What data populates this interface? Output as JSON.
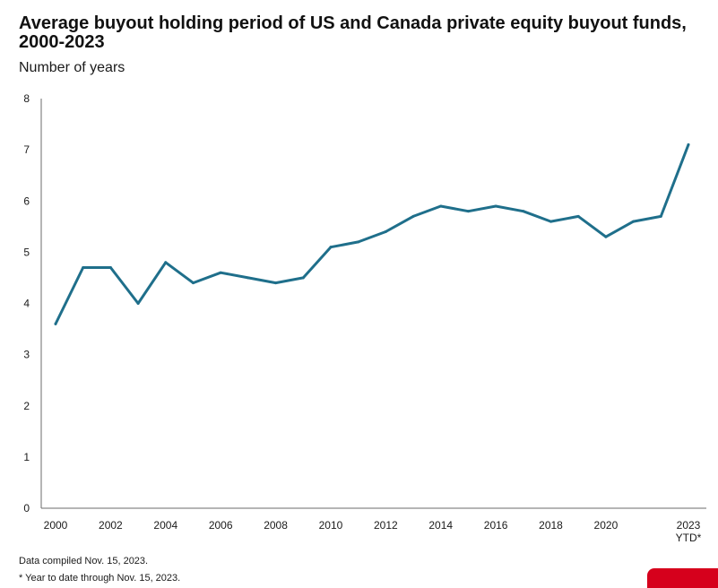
{
  "header": {
    "title": "Average buyout holding period of US and Canada private equity buyout funds, 2000-2023",
    "subtitle": "Number of years"
  },
  "footnotes": {
    "compiled": "Data compiled Nov. 15, 2023.",
    "ytd": "* Year to date through Nov. 15, 2023."
  },
  "colors": {
    "line": "#1f6f8b",
    "axis": "#6b6b6b",
    "text": "#1a1a1a",
    "brand_mark": "#d6001c"
  },
  "chart_data": {
    "type": "line",
    "title": "Average buyout holding period of US and Canada private equity buyout funds, 2000-2023",
    "ylabel": "Number of years",
    "xlabel": "",
    "ylim": [
      0,
      8
    ],
    "yticks": [
      0,
      1,
      2,
      3,
      4,
      5,
      6,
      7,
      8
    ],
    "x": [
      2000,
      2001,
      2002,
      2003,
      2004,
      2005,
      2006,
      2007,
      2008,
      2009,
      2010,
      2011,
      2012,
      2013,
      2014,
      2015,
      2016,
      2017,
      2018,
      2019,
      2020,
      2021,
      2022,
      2023
    ],
    "xticks": [
      {
        "x": 2000,
        "label": "2000"
      },
      {
        "x": 2002,
        "label": "2002"
      },
      {
        "x": 2004,
        "label": "2004"
      },
      {
        "x": 2006,
        "label": "2006"
      },
      {
        "x": 2008,
        "label": "2008"
      },
      {
        "x": 2010,
        "label": "2010"
      },
      {
        "x": 2012,
        "label": "2012"
      },
      {
        "x": 2014,
        "label": "2014"
      },
      {
        "x": 2016,
        "label": "2016"
      },
      {
        "x": 2018,
        "label": "2018"
      },
      {
        "x": 2020,
        "label": "2020"
      },
      {
        "x": 2023,
        "label": "2023",
        "sublabel": "YTD*"
      }
    ],
    "series": [
      {
        "values": [
          3.6,
          4.7,
          4.7,
          4.0,
          4.8,
          4.4,
          4.6,
          4.5,
          4.4,
          4.5,
          5.1,
          5.2,
          5.4,
          5.7,
          5.9,
          5.8,
          5.9,
          5.8,
          5.6,
          5.7,
          5.3,
          5.6,
          5.7,
          7.1
        ]
      }
    ],
    "grid": false,
    "legend": "none"
  }
}
